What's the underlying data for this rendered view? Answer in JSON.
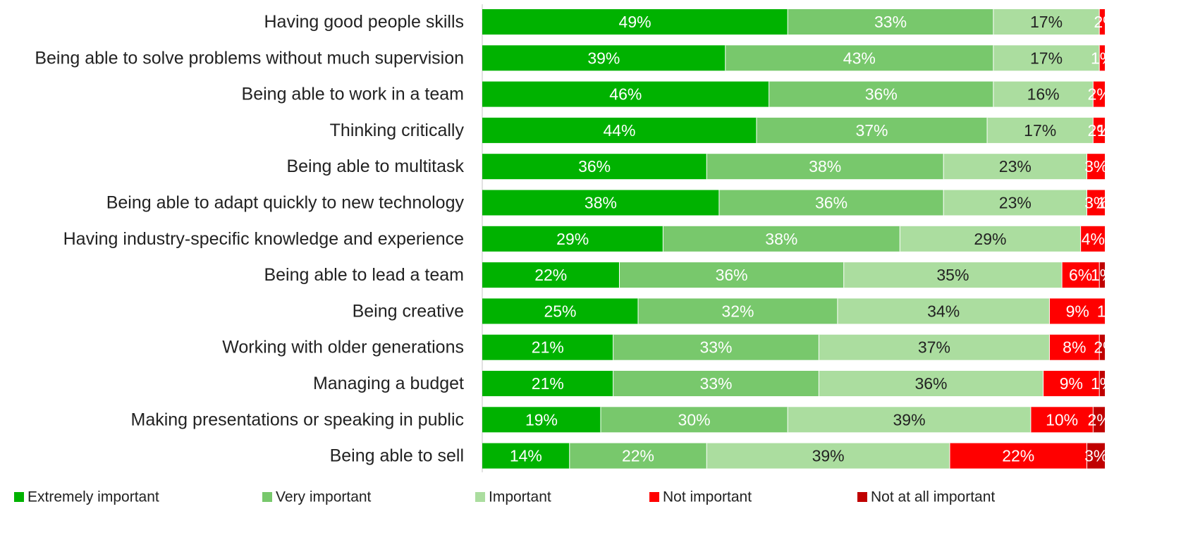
{
  "chart_data": {
    "type": "bar",
    "orientation": "horizontal",
    "stacked": true,
    "legend_position": "bottom",
    "grid": false,
    "xlim": [
      0,
      100
    ],
    "categories": [
      "Having good people skills",
      "Being able to solve problems without much supervision",
      "Being able to work in a team",
      "Thinking critically",
      "Being able to multitask",
      "Being able to adapt quickly to new technology",
      "Having industry-specific knowledge and experience",
      "Being able to lead a team",
      "Being creative",
      "Working with older generations",
      "Managing a budget",
      "Making presentations or speaking in public",
      "Being able to sell"
    ],
    "series": [
      {
        "name": "Extremely important",
        "color": "#00b200",
        "label_color": "#ffffff",
        "values": [
          49,
          39,
          46,
          44,
          36,
          38,
          29,
          22,
          25,
          21,
          21,
          19,
          14
        ]
      },
      {
        "name": "Very important",
        "color": "#78c86c",
        "label_color": "#ffffff",
        "values": [
          33,
          43,
          36,
          37,
          38,
          36,
          38,
          36,
          32,
          33,
          33,
          30,
          22
        ]
      },
      {
        "name": "Important",
        "color": "#abdd9f",
        "label_color": "#222222",
        "values": [
          17,
          17,
          16,
          17,
          23,
          23,
          29,
          35,
          34,
          37,
          36,
          39,
          39
        ]
      },
      {
        "name": "Not important",
        "color": "#ff0000",
        "label_color": "#ffffff",
        "values": [
          2,
          1,
          2,
          2,
          3,
          3,
          4,
          6,
          9,
          8,
          9,
          10,
          22
        ]
      },
      {
        "name": "Not at all important",
        "color": "#c00000",
        "label_color": "#ffffff",
        "values": [
          0,
          0,
          0,
          1,
          0,
          1,
          0,
          1,
          1,
          2,
          1,
          2,
          3
        ]
      }
    ]
  }
}
